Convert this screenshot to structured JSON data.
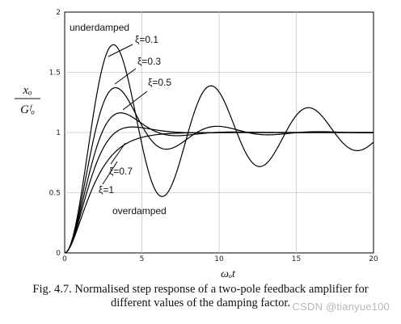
{
  "chart_data": {
    "type": "line",
    "title": "",
    "xlabel": "ωₒt",
    "ylabel": {
      "numerator": "xₒ",
      "denominator": "Gᶠₒ"
    },
    "xlim": [
      0,
      20
    ],
    "ylim": [
      0,
      2
    ],
    "x_ticks": [
      "0",
      "5",
      "10",
      "15",
      "20"
    ],
    "y_ticks": [
      "0",
      "0.5",
      "1",
      "1.5",
      "2"
    ],
    "grid": true,
    "series": [
      {
        "name": "ξ=0.1",
        "zeta": 0.1
      },
      {
        "name": "ξ=0.3",
        "zeta": 0.3
      },
      {
        "name": "ξ=0.5",
        "zeta": 0.5
      },
      {
        "name": "ξ=0.7",
        "zeta": 0.7
      },
      {
        "name": "ξ=1",
        "zeta": 1.0
      }
    ],
    "annotations": {
      "top": "underdamped",
      "bottom": "overdamped"
    }
  },
  "caption": {
    "line1": "Fig. 4.7. Normalised step response of a two-pole feedback amplifier for",
    "line2": "different values of the damping factor."
  },
  "watermark": "CSDN @tianyue100"
}
